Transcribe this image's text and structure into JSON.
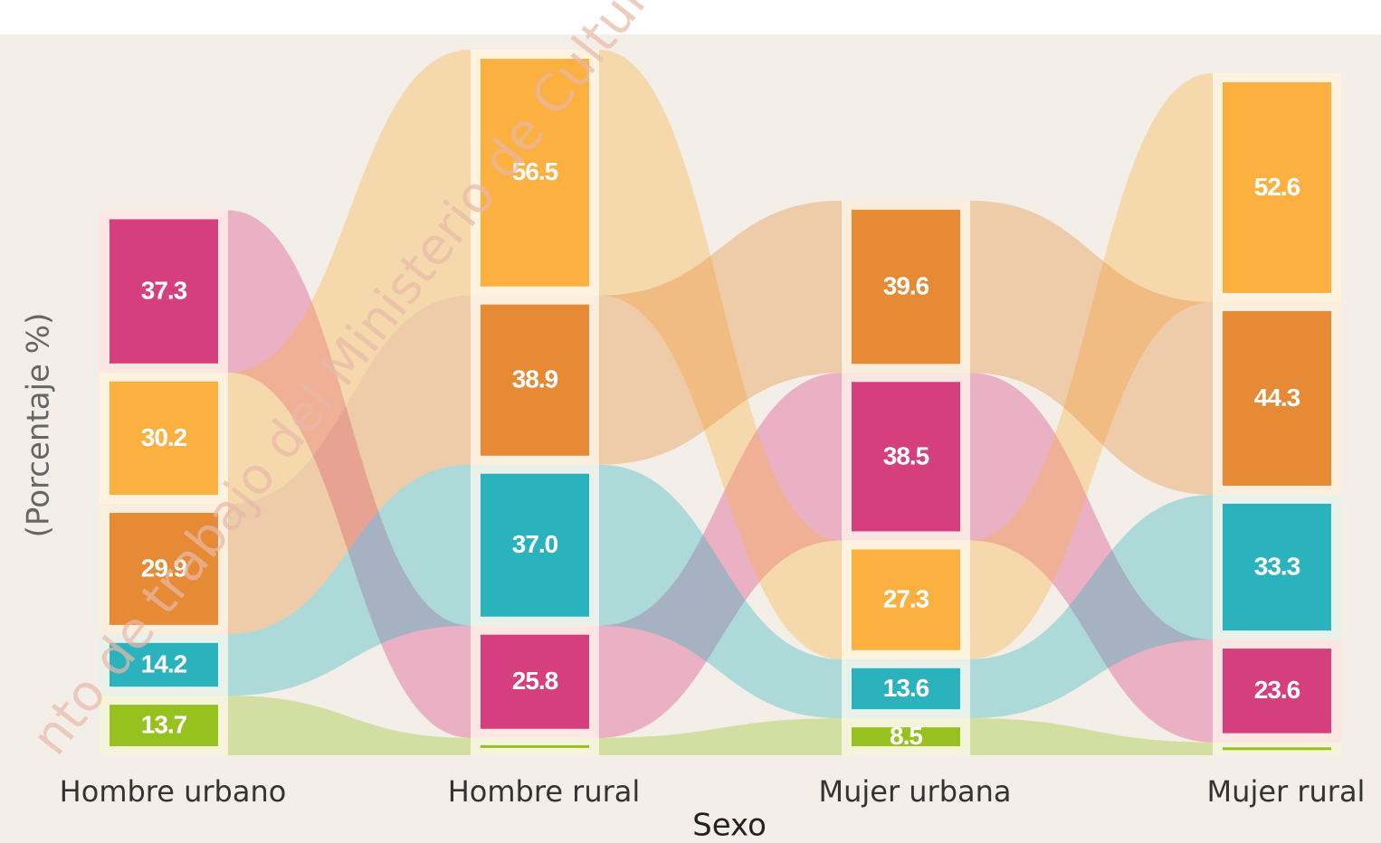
{
  "chart_data": {
    "type": "ribbon",
    "watermark": "nto de trabajo del Ministerio de Cultura",
    "y_label": "(Porcentaje %)",
    "x_label": "Sexo",
    "categories": [
      "Hombre urbano",
      "Hombre rural",
      "Mujer urbana",
      "Mujer rural"
    ],
    "series": [
      {
        "color": "#d63f7d",
        "values": [
          37.3,
          25.8,
          38.5,
          23.6
        ]
      },
      {
        "color": "#fbb040",
        "values": [
          30.2,
          56.5,
          27.3,
          52.6
        ]
      },
      {
        "color": "#e68a35",
        "values": [
          29.9,
          38.9,
          39.6,
          44.3
        ]
      },
      {
        "color": "#2bb3bd",
        "values": [
          14.2,
          37.0,
          13.6,
          33.3
        ],
        "value_labels": [
          "14.2",
          "37.0",
          "13.6",
          "33.3"
        ]
      },
      {
        "color": "#97c11f",
        "values": [
          13.7,
          4.0,
          8.5,
          3.0
        ]
      }
    ]
  }
}
